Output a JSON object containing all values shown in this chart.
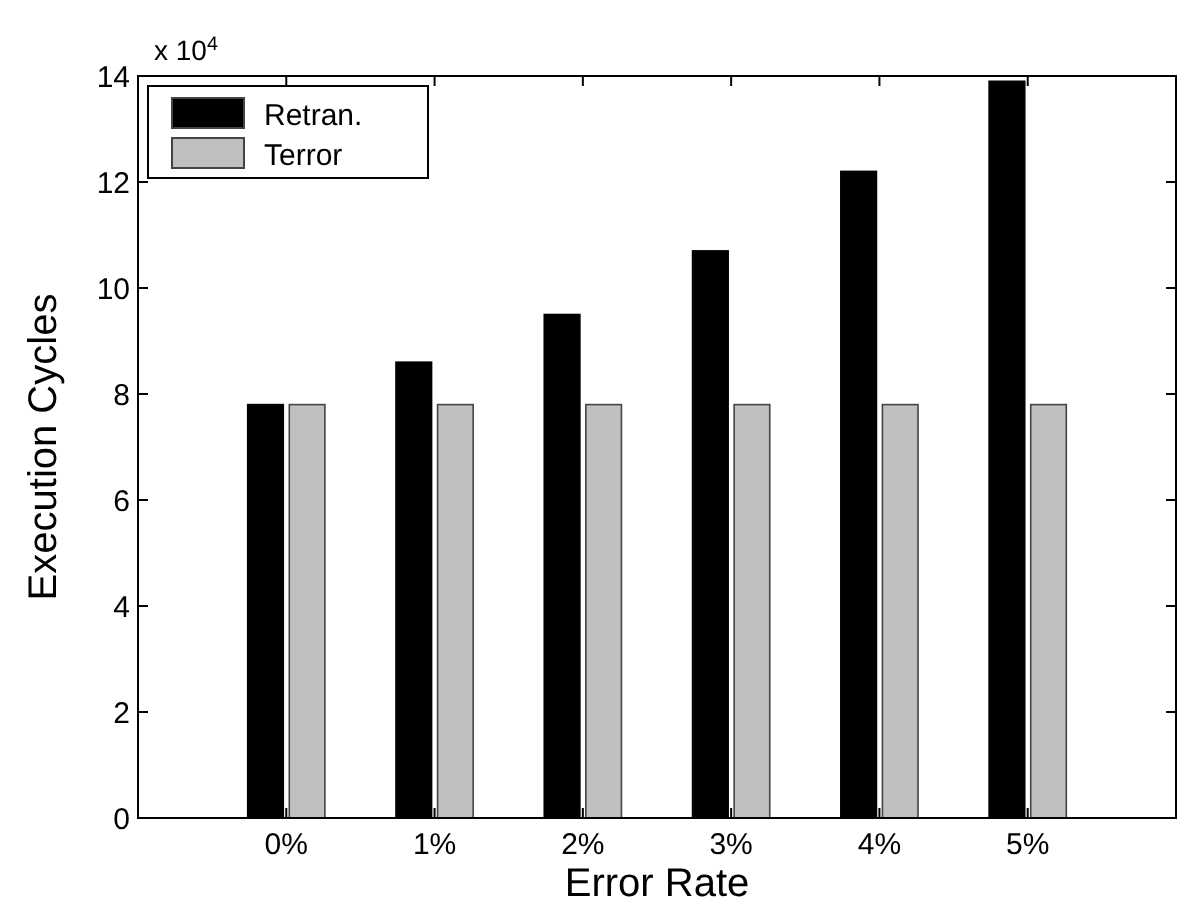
{
  "chart_data": {
    "type": "bar",
    "xlabel": "Error Rate",
    "ylabel": "Execution Cycles",
    "annotations": [
      "x 10$^{4}$"
    ],
    "categories": [
      "0%",
      "1%",
      "2%",
      "3%",
      "4%",
      "5%"
    ],
    "series": [
      {
        "name": "Retran.",
        "color": "#000000",
        "values": [
          7.8,
          8.6,
          9.5,
          10.7,
          12.2,
          13.9
        ]
      },
      {
        "name": "Terror",
        "color": "#c0c0c0",
        "values": [
          7.8,
          7.8,
          7.8,
          7.8,
          7.8,
          7.8
        ]
      }
    ],
    "ylim": [
      0,
      14
    ],
    "yticks": [
      0,
      2,
      4,
      6,
      8,
      10,
      12,
      14
    ],
    "grid": false,
    "legend": "top left"
  }
}
